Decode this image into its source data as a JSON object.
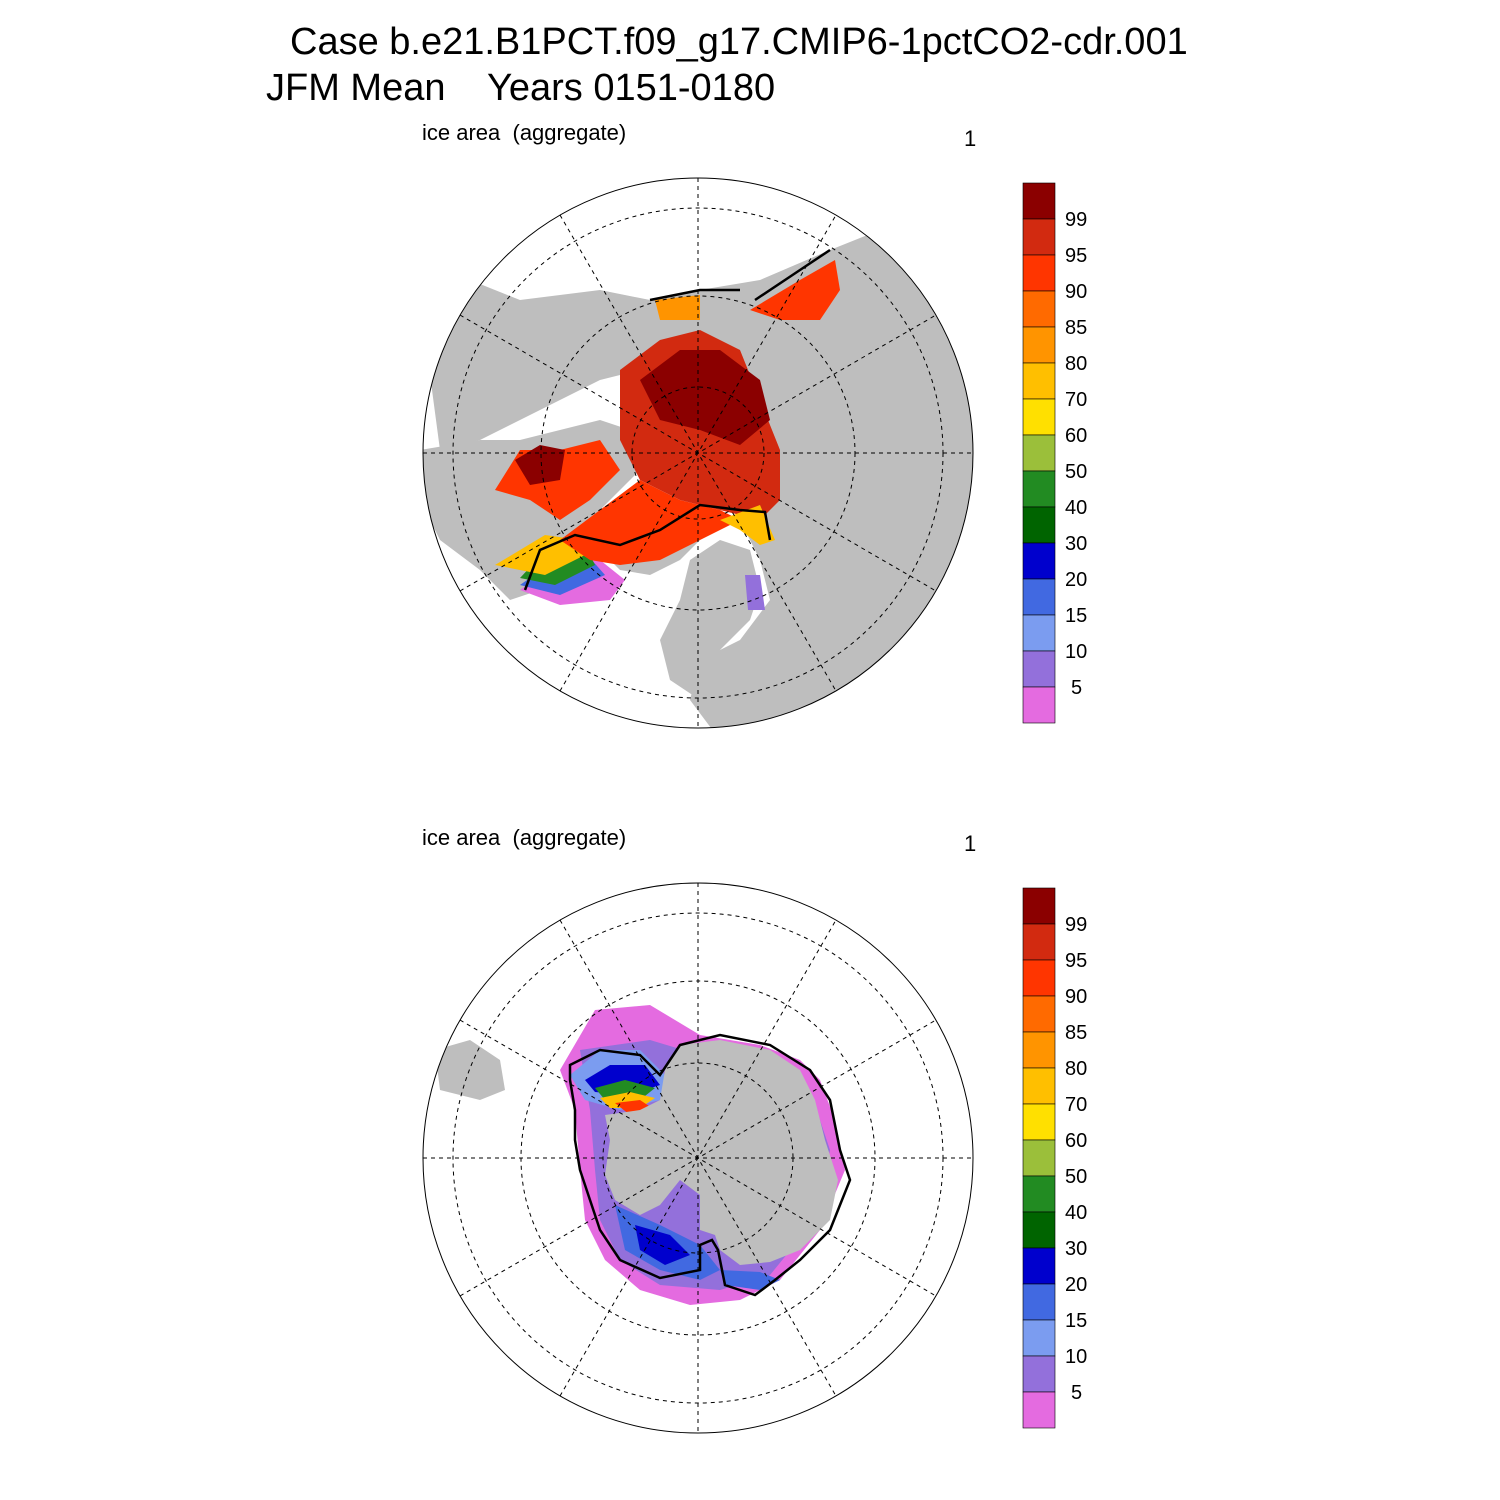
{
  "title": {
    "line1": "Case b.e21.B1PCT.f09_g17.CMIP6-1pctCO2-cdr.001",
    "line2": "JFM Mean    Years 0151-0180"
  },
  "colors": {
    "land": "#bebebe",
    "ocean": "#ffffff",
    "contour": "#000000"
  },
  "colorbar": {
    "levels": [
      "99",
      "95",
      "90",
      "85",
      "80",
      "70",
      "60",
      "50",
      "40",
      "30",
      "20",
      "15",
      "10",
      "5"
    ],
    "colors": [
      "#8b0000",
      "#d22a10",
      "#ff3500",
      "#ff6a00",
      "#ff9400",
      "#ffbf00",
      "#ffe000",
      "#9bbf3a",
      "#228b22",
      "#006400",
      "#0000cd",
      "#4169e1",
      "#7b9cf0",
      "#9370db",
      "#e46be0"
    ]
  },
  "panels": [
    {
      "id": "north",
      "label": "ice area  (aggregate)",
      "number": "1"
    },
    {
      "id": "south",
      "label": "ice area  (aggregate)",
      "number": "1"
    }
  ]
}
